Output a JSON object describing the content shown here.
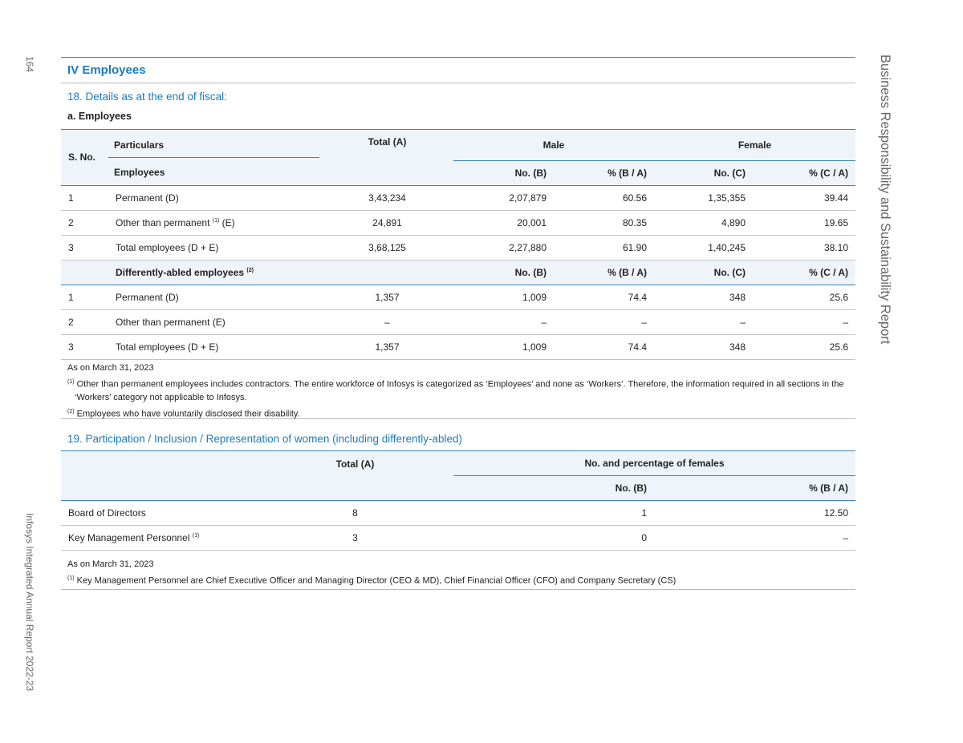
{
  "page_number": "164",
  "left_running_title": "Infosys Integrated Annual Report 2022-23",
  "right_running_title": "Business Responsibility and Sustainability Report",
  "section_title": "IV Employees",
  "q18": {
    "title": "18. Details as at the end of fiscal:",
    "subtitle": "a. Employees",
    "headers": {
      "sno": "S. No.",
      "particulars": "Particulars",
      "employees": "Employees",
      "total": "Total (A)",
      "male": "Male",
      "female": "Female",
      "no_b": "No. (B)",
      "pct_b": "% (B / A)",
      "no_c": "No. (C)",
      "pct_c": "% (C / A)"
    },
    "rows": [
      {
        "sno": "1",
        "label": "Permanent (D)",
        "sup": "",
        "suffix": "",
        "total": "3,43,234",
        "no_b": "2,07,879",
        "pct_b": "60.56",
        "no_c": "1,35,355",
        "pct_c": "39.44"
      },
      {
        "sno": "2",
        "label": "Other than permanent",
        "sup": "(1)",
        "suffix": " (E)",
        "total": "24,891",
        "no_b": "20,001",
        "pct_b": "80.35",
        "no_c": "4,890",
        "pct_c": "19.65"
      },
      {
        "sno": "3",
        "label": "Total employees (D + E)",
        "sup": "",
        "suffix": "",
        "total": "3,68,125",
        "no_b": "2,27,880",
        "pct_b": "61.90",
        "no_c": "1,40,245",
        "pct_c": "38.10"
      }
    ],
    "da_header": {
      "label": "Differently-abled employees",
      "sup": "(2)",
      "no_b": "No. (B)",
      "pct_b": "% (B / A)",
      "no_c": "No. (C)",
      "pct_c": "% (C / A)"
    },
    "da_rows": [
      {
        "sno": "1",
        "label": "Permanent (D)",
        "total": "1,357",
        "no_b": "1,009",
        "pct_b": "74.4",
        "no_c": "348",
        "pct_c": "25.6"
      },
      {
        "sno": "2",
        "label": "Other than permanent (E)",
        "total": "–",
        "no_b": "–",
        "pct_b": "–",
        "no_c": "–",
        "pct_c": "–"
      },
      {
        "sno": "3",
        "label": "Total employees (D + E)",
        "total": "1,357",
        "no_b": "1,009",
        "pct_b": "74.4",
        "no_c": "348",
        "pct_c": "25.6"
      }
    ],
    "notes": {
      "as_on": "As on March 31, 2023",
      "n1_sup": "(1)",
      "n1a": "Other than permanent employees includes contractors. The entire workforce of Infosys is categorized as ‘Employees’ and none as ‘Workers’. Therefore, the information required in all sections in the",
      "n1b": "‘Workers’ category not applicable to Infosys.",
      "n2_sup": "(2)",
      "n2": "Employees who have voluntarily disclosed their disability."
    }
  },
  "q19": {
    "title": "19. Participation / Inclusion / Representation of women (including differently-abled)",
    "headers": {
      "total": "Total (A)",
      "females": "No. and percentage of females",
      "no_b": "No. (B)",
      "pct_b": "% (B / A)"
    },
    "rows": [
      {
        "label": "Board of Directors",
        "sup": "",
        "total": "8",
        "no_b": "1",
        "pct_b": "12.50"
      },
      {
        "label": "Key Management Personnel",
        "sup": "(1)",
        "total": "3",
        "no_b": "0",
        "pct_b": "–"
      }
    ],
    "notes": {
      "as_on": "As on March 31, 2023",
      "n1_sup": "(1)",
      "n1": "Key Management Personnel are Chief Executive Officer and Managing Director (CEO & MD), Chief Financial Officer (CFO) and Company Secretary (CS)"
    }
  }
}
